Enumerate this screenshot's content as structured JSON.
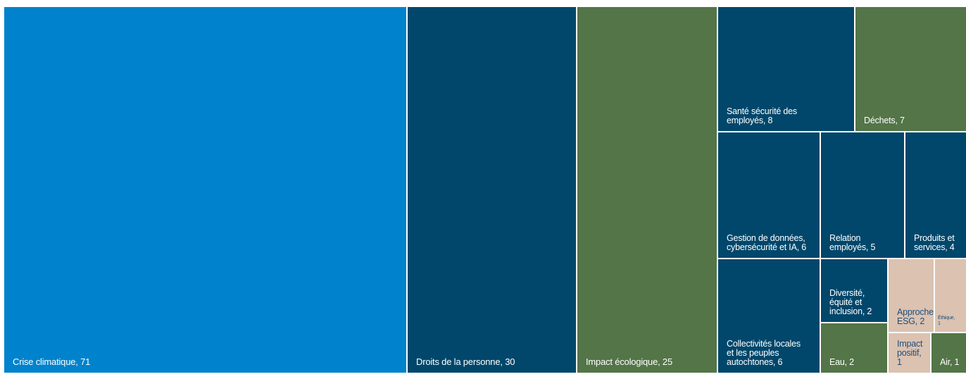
{
  "chart_data": {
    "type": "treemap",
    "colors": {
      "bright_blue": "#0082cc",
      "navy": "#00476b",
      "green": "#537548",
      "beige": "#dbc2b1",
      "beige_text": "#1f4e79"
    },
    "items": [
      {
        "name": "Crise climatique",
        "value": 71,
        "label": "Crise climatique, 71",
        "color": "bright_blue"
      },
      {
        "name": "Droits de la personne",
        "value": 30,
        "label": "Droits de la personne, 30",
        "color": "navy"
      },
      {
        "name": "Impact écologique",
        "value": 25,
        "label": "Impact écologique, 25",
        "color": "green"
      },
      {
        "name": "Santé sécurité des employés",
        "value": 8,
        "label": "Santé sécurité des\nemployés, 8",
        "color": "navy"
      },
      {
        "name": "Déchets",
        "value": 7,
        "label": "Déchets, 7",
        "color": "green"
      },
      {
        "name": "Gestion de données, cybersécurité et IA",
        "value": 6,
        "label": "Gestion de données,\ncybersécurité et IA, 6",
        "color": "navy"
      },
      {
        "name": "Relation employés",
        "value": 5,
        "label": "Relation\nemployés, 5",
        "color": "navy"
      },
      {
        "name": "Produits et services",
        "value": 4,
        "label": "Produits et\nservices, 4",
        "color": "navy"
      },
      {
        "name": "Collectivités locales et les peuples autochtones",
        "value": 6,
        "label": "Collectivités locales\net les peuples\nautochtones, 6",
        "color": "navy"
      },
      {
        "name": "Diversité, équité et inclusion",
        "value": 2,
        "label": "Diversité,\néquité et\ninclusion, 2",
        "color": "navy"
      },
      {
        "name": "Eau",
        "value": 2,
        "label": "Eau, 2",
        "color": "green"
      },
      {
        "name": "Approche ESG",
        "value": 2,
        "label": "Approche\nESG, 2",
        "color": "beige"
      },
      {
        "name": "Éthique",
        "value": 1,
        "label": "Éthique,\n1",
        "color": "beige"
      },
      {
        "name": "Impact positif",
        "value": 1,
        "label": "Impact\npositif, 1",
        "color": "beige"
      },
      {
        "name": "Air",
        "value": 1,
        "label": "Air, 1",
        "color": "green"
      }
    ]
  }
}
